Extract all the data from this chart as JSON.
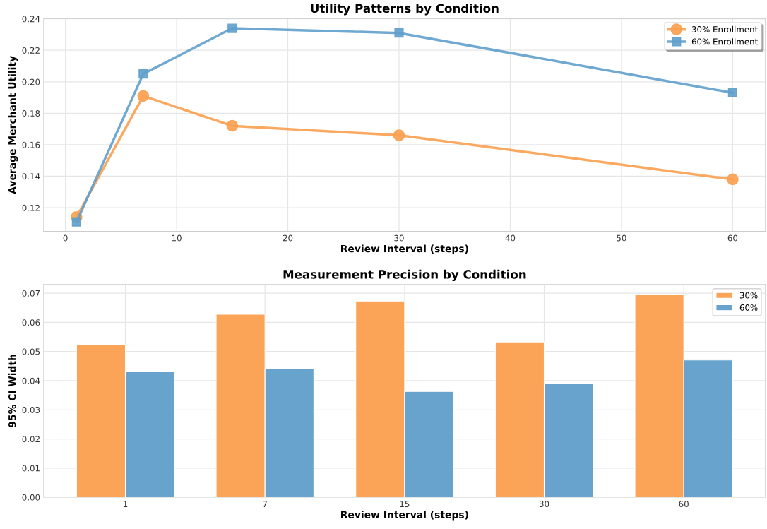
{
  "chart_data": [
    {
      "type": "line",
      "title": "Utility Patterns by Condition",
      "xlabel": "Review Interval (steps)",
      "ylabel": "Average Merchant Utility",
      "x": [
        1,
        7,
        15,
        30,
        60
      ],
      "series": [
        {
          "name": "30% Enrollment",
          "color": "#fba050",
          "marker": "circle",
          "values": [
            0.114,
            0.191,
            0.172,
            0.166,
            0.138
          ]
        },
        {
          "name": "60% Enrollment",
          "color": "#5f9fcb",
          "marker": "square",
          "values": [
            0.111,
            0.205,
            0.234,
            0.231,
            0.193
          ]
        }
      ],
      "xlim": [
        -1.95,
        62.95
      ],
      "xticks": [
        0,
        10,
        20,
        30,
        40,
        50,
        60
      ],
      "ylim": [
        0.105,
        0.2402
      ],
      "yticks": [
        {
          "value": 0.12,
          "label": "0.12"
        },
        {
          "value": 0.14,
          "label": "0.14"
        },
        {
          "value": 0.16,
          "label": "0.16"
        },
        {
          "value": 0.18,
          "label": "0.18"
        },
        {
          "value": 0.2,
          "label": "0.20"
        },
        {
          "value": 0.22,
          "label": "0.22"
        },
        {
          "value": 0.24,
          "label": "0.24"
        }
      ],
      "grid": true,
      "legend": "top right",
      "line_style": "solid"
    },
    {
      "type": "bar",
      "title": "Measurement Precision by Condition",
      "xlabel": "Review Interval (steps)",
      "ylabel": "95% CI Width",
      "categories": [
        "1",
        "7",
        "15",
        "30",
        "60"
      ],
      "series": [
        {
          "name": "30%",
          "color": "#fba050",
          "values": [
            0.0523,
            0.0628,
            0.0673,
            0.0533,
            0.0695
          ]
        },
        {
          "name": "60%",
          "color": "#5f9fcb",
          "values": [
            0.0433,
            0.0441,
            0.0363,
            0.0389,
            0.0471
          ]
        }
      ],
      "ylim": [
        0,
        0.073
      ],
      "yticks": [
        {
          "value": 0,
          "label": "0.00"
        },
        {
          "value": 0.01,
          "label": "0.01"
        },
        {
          "value": 0.02,
          "label": "0.02"
        },
        {
          "value": 0.03,
          "label": "0.03"
        },
        {
          "value": 0.04,
          "label": "0.04"
        },
        {
          "value": 0.05,
          "label": "0.05"
        },
        {
          "value": 0.06,
          "label": "0.06"
        },
        {
          "value": 0.07,
          "label": "0.07"
        }
      ],
      "grid": true,
      "legend": "top right"
    }
  ]
}
